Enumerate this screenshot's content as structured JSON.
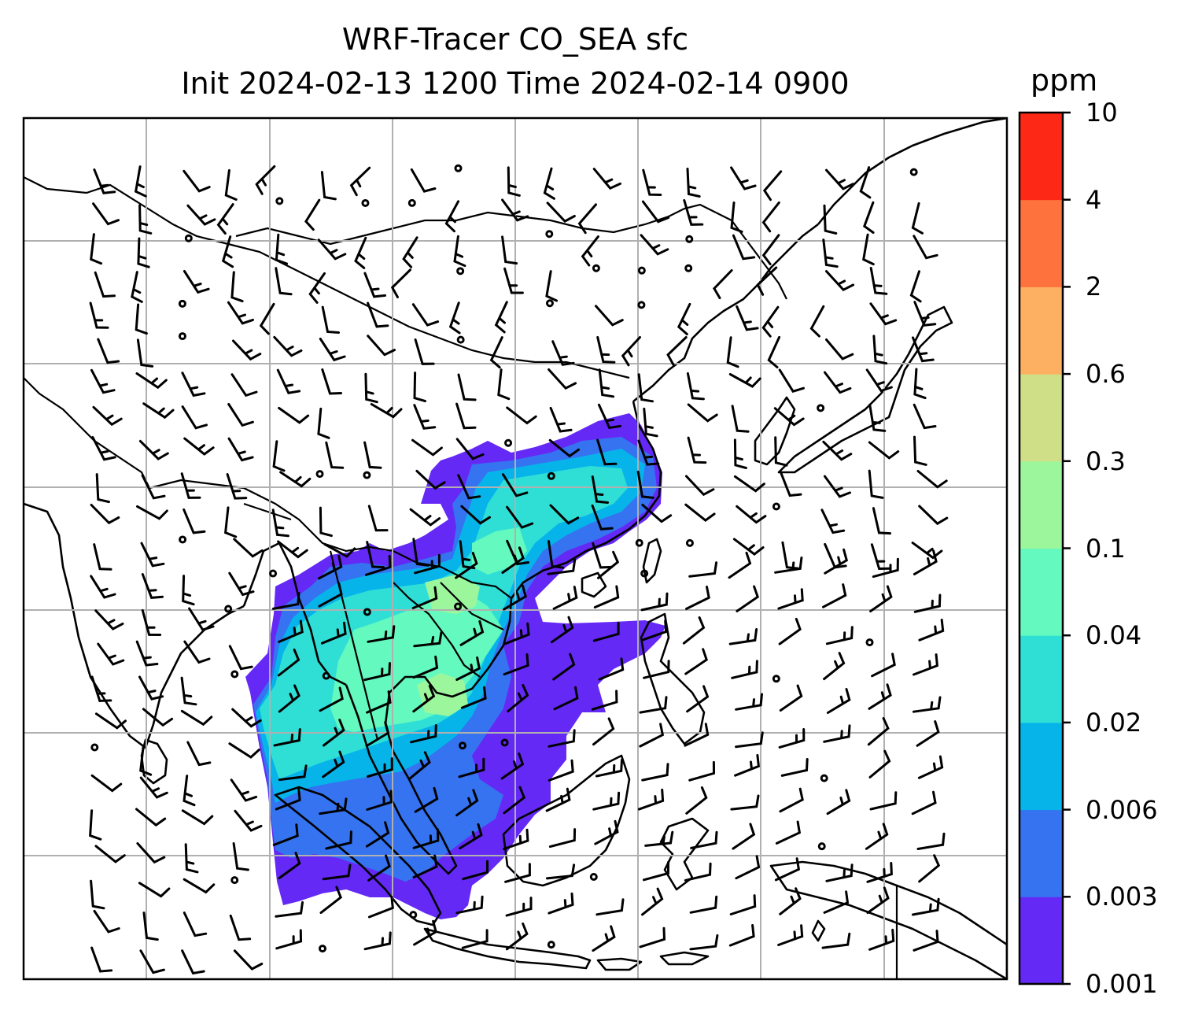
{
  "title": {
    "line1": "WRF-Tracer CO_SEA sfc",
    "line2": "Init 2024-02-13 1200 Time 2024-02-14 0900"
  },
  "colorbar": {
    "unit": "ppm",
    "levels": [
      "0.001",
      "0.003",
      "0.006",
      "0.02",
      "0.04",
      "0.1",
      "0.3",
      "0.6",
      "2",
      "4",
      "10"
    ],
    "colors": [
      "#6529f6",
      "#3573f0",
      "#06b4ea",
      "#2fdfd6",
      "#64f9bf",
      "#9cf79c",
      "#cedf88",
      "#fdb062",
      "#fe733d",
      "#fe2817"
    ]
  },
  "map": {
    "variable": "CO_SEA surface tracer",
    "grid": "lat/lon graticule",
    "overlays": [
      "coastlines",
      "country borders",
      "wind barbs"
    ]
  }
}
